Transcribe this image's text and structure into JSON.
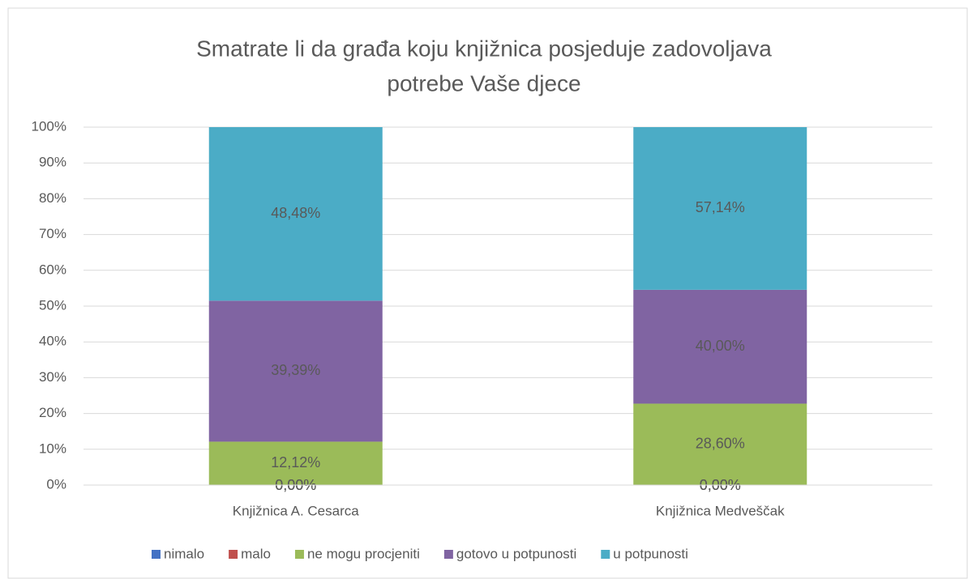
{
  "chart_data": {
    "type": "stacked_percent_bar",
    "title": [
      "Smatrate li da građa koju knjižnica posjeduje zadovoljava",
      "potrebe Vaše djece"
    ],
    "categories": [
      "Knjižnica A. Cesarca",
      "Knjižnica Medveščak"
    ],
    "series": [
      {
        "name": "nimalo",
        "color": "#4472c4",
        "values": [
          0,
          0
        ],
        "value_labels": [
          "0,00%",
          "0,00%"
        ]
      },
      {
        "name": "malo",
        "color": "#c0504d",
        "values": [
          0,
          0
        ],
        "value_labels": [
          "0,00%",
          "0,00%"
        ]
      },
      {
        "name": "ne mogu procjeniti",
        "color": "#9bbb59",
        "values": [
          12.12,
          28.6
        ],
        "value_labels": [
          "12,12%",
          "28,60%"
        ]
      },
      {
        "name": "gotovo u potpunosti",
        "color": "#8064a2",
        "values": [
          39.39,
          40
        ],
        "value_labels": [
          "39,39%",
          "40,00%"
        ]
      },
      {
        "name": "u potpunosti",
        "color": "#4bacc6",
        "values": [
          48.48,
          57.14
        ],
        "value_labels": [
          "48,48%",
          "57,14%"
        ]
      }
    ],
    "ylim": [
      0,
      100
    ],
    "yticks": [
      {
        "value": 0,
        "label": "0%"
      },
      {
        "value": 10,
        "label": "10%"
      },
      {
        "value": 20,
        "label": "20%"
      },
      {
        "value": 30,
        "label": "30%"
      },
      {
        "value": 40,
        "label": "40%"
      },
      {
        "value": 50,
        "label": "50%"
      },
      {
        "value": 60,
        "label": "60%"
      },
      {
        "value": 70,
        "label": "70%"
      },
      {
        "value": 80,
        "label": "80%"
      },
      {
        "value": 90,
        "label": "90%"
      },
      {
        "value": 100,
        "label": "100%"
      }
    ],
    "grid": true,
    "legend": "bottom"
  }
}
